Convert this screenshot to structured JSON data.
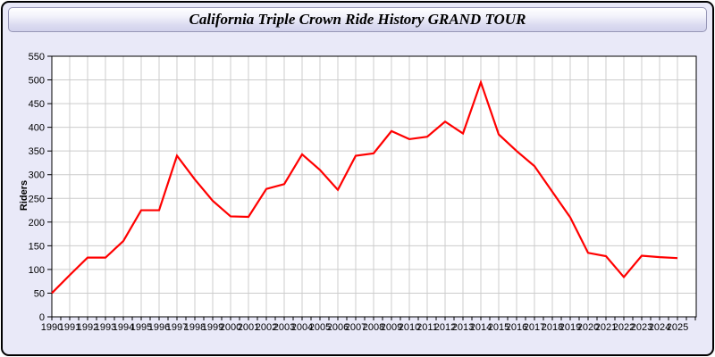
{
  "window": {
    "title": "California Triple Crown Ride History GRAND TOUR",
    "background_color": "#e9e9f8",
    "titlebar_top_color": "#ffffff",
    "titlebar_bottom_color": "#d2d2ec",
    "border_color": "#000000"
  },
  "chart_data": {
    "type": "line",
    "title": "California Triple Crown Ride History GRAND TOUR",
    "xlabel": "",
    "ylabel": "Riders",
    "ylim": [
      0,
      550
    ],
    "ytick_interval": 50,
    "grid": true,
    "legend_position": "none",
    "plot_bg_color": "#ffffff",
    "grid_color": "#cccccc",
    "axis_color": "#000000",
    "x": [
      1990,
      1991,
      1992,
      1993,
      1994,
      1995,
      1996,
      1997,
      1998,
      1999,
      2000,
      2001,
      2002,
      2003,
      2004,
      2005,
      2006,
      2007,
      2008,
      2009,
      2010,
      2011,
      2012,
      2013,
      2014,
      2015,
      2016,
      2017,
      2018,
      2019,
      2020,
      2021,
      2022,
      2023,
      2024,
      2025
    ],
    "series": [
      {
        "name": "Riders",
        "color": "#ff0000",
        "values": [
          50,
          88,
          125,
          125,
          160,
          225,
          225,
          340,
          290,
          245,
          212,
          211,
          270,
          280,
          343,
          310,
          268,
          340,
          345,
          392,
          375,
          380,
          412,
          387,
          495,
          385,
          350,
          318,
          264,
          210,
          135,
          128,
          84,
          129,
          126,
          124
        ]
      }
    ]
  }
}
